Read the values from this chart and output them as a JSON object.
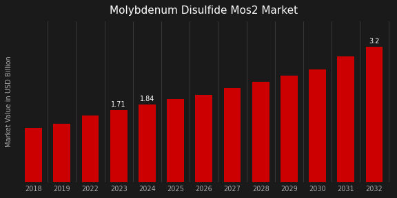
{
  "title": "Molybdenum Disulfide Mos2 Market",
  "ylabel": "Market Value in USD Billion",
  "categories": [
    "2018",
    "2019",
    "2022",
    "2023",
    "2024",
    "2025",
    "2026",
    "2027",
    "2028",
    "2029",
    "2030",
    "2031",
    "2032"
  ],
  "values": [
    1.28,
    1.38,
    1.58,
    1.71,
    1.84,
    1.97,
    2.07,
    2.22,
    2.38,
    2.52,
    2.67,
    2.98,
    3.2
  ],
  "bar_color": "#cc0000",
  "labeled_bars_indices": [
    3,
    4,
    12
  ],
  "labeled_bars_text": [
    "1.71",
    "1.84",
    "3.2"
  ],
  "bg_color": "#1a1a1a",
  "title_fontsize": 11,
  "ylabel_fontsize": 7,
  "tick_fontsize": 7,
  "label_fontsize": 7,
  "ylim": [
    0,
    3.8
  ],
  "bar_width": 0.6
}
